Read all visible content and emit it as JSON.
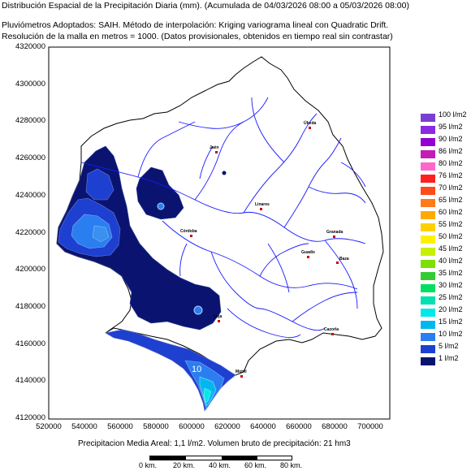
{
  "header": {
    "line1": "Distribución Espacial de la Precipitación Diaria (mm). (Acumulada de 04/03/2026 08:00 a 05/03/2026 08:00)",
    "line2": "Pluviómetros Adoptados: SAIH.  Método de interpolación: Kriging variograma lineal con Quadratic Drift.",
    "line3": "Resolución de la malla en metros = 1000. (Datos provisionales, obtenidos en tiempo real sin contrastar)"
  },
  "axes": {
    "y_ticks": [
      "4320000",
      "4300000",
      "4280000",
      "4260000",
      "4240000",
      "4220000",
      "4200000",
      "4180000",
      "4160000",
      "4140000",
      "4120000"
    ],
    "x_ticks": [
      "520000",
      "540000",
      "560000",
      "580000",
      "600000",
      "620000",
      "640000",
      "660000",
      "680000",
      "700000"
    ]
  },
  "legend": [
    {
      "label": "100 l/m2",
      "color": "#7a3fd1"
    },
    {
      "label": "95 l/m2",
      "color": "#8a2be2"
    },
    {
      "label": "90 l/m2",
      "color": "#9400d3"
    },
    {
      "label": "86 l/m2",
      "color": "#c21db5"
    },
    {
      "label": "80 l/m2",
      "color": "#ff66cc"
    },
    {
      "label": "76 l/m2",
      "color": "#ff2020"
    },
    {
      "label": "70 l/m2",
      "color": "#ff4a1a"
    },
    {
      "label": "65 l/m2",
      "color": "#ff7a1a"
    },
    {
      "label": "60 l/m2",
      "color": "#ffaa00"
    },
    {
      "label": "55 l/m2",
      "color": "#ffd000"
    },
    {
      "label": "50 l/m2",
      "color": "#fff000"
    },
    {
      "label": "45 l/m2",
      "color": "#c8f000"
    },
    {
      "label": "40 l/m2",
      "color": "#7ee000"
    },
    {
      "label": "35 l/m2",
      "color": "#33cc33"
    },
    {
      "label": "30 l/m2",
      "color": "#00e060"
    },
    {
      "label": "25 l/m2",
      "color": "#00e0b0"
    },
    {
      "label": "20 l/m2",
      "color": "#00e8e8"
    },
    {
      "label": "15 l/m2",
      "color": "#00b8f0"
    },
    {
      "label": "10 l/m2",
      "color": "#2a7ef0"
    },
    {
      "label": "5 l/m2",
      "color": "#1e40d0"
    },
    {
      "label": "1 l/m2",
      "color": "#0a1470"
    }
  ],
  "contour_label": "10",
  "cities": [
    {
      "name": "Jaén"
    },
    {
      "name": "Úbeda"
    },
    {
      "name": "Linares"
    },
    {
      "name": "Córdoba"
    },
    {
      "name": "Granada"
    },
    {
      "name": "Guadix"
    },
    {
      "name": "Loja"
    },
    {
      "name": "Motril"
    },
    {
      "name": "Cazorla"
    },
    {
      "name": "Baza"
    }
  ],
  "footer": {
    "stats": "Precipitacion Media Areal: 1,1 l/m2. Volumen bruto de precipitación: 21 hm3"
  },
  "scale": [
    "0 km.",
    "20 km.",
    "40 km.",
    "60 km.",
    "80 km."
  ]
}
